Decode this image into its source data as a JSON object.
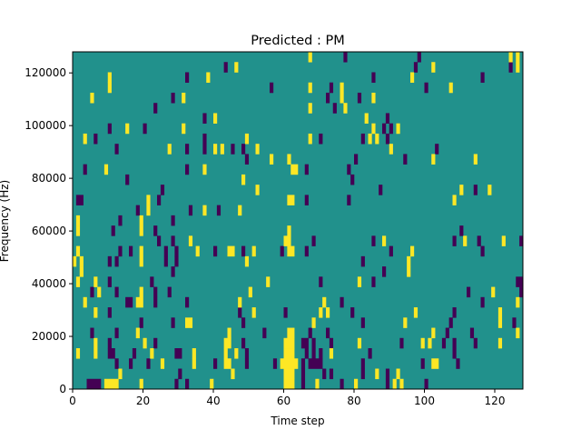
{
  "chart_data": {
    "type": "heatmap",
    "title": "Predicted : PM",
    "xlabel": "Time step",
    "ylabel": "Frequency (Hz)",
    "xlim": [
      0,
      128
    ],
    "ylim": [
      0,
      128000
    ],
    "n_time_steps": 128,
    "n_freq_bins": 33,
    "x_ticks": [
      0,
      20,
      40,
      60,
      80,
      100,
      120
    ],
    "x_tick_labels": [
      "0",
      "20",
      "40",
      "60",
      "80",
      "100",
      "120"
    ],
    "y_ticks": [
      0,
      20000,
      40000,
      60000,
      80000,
      100000,
      120000
    ],
    "y_tick_labels": [
      "0",
      "20000",
      "40000",
      "60000",
      "80000",
      "100000",
      "120000"
    ],
    "colors": {
      "background": "#21918c",
      "low": "#440154",
      "high": "#fde725"
    },
    "cell_format": "[time_step, freq_bin, n_steps]",
    "purple_cells": [
      [
        4,
        0,
        4
      ],
      [
        29,
        0,
        1
      ],
      [
        32,
        0,
        1
      ],
      [
        65,
        0,
        1
      ],
      [
        76,
        0,
        1
      ],
      [
        89,
        0,
        1
      ],
      [
        100,
        0,
        1
      ],
      [
        30,
        1,
        1
      ],
      [
        65,
        1,
        1
      ],
      [
        71,
        1,
        1
      ],
      [
        73,
        1,
        1
      ],
      [
        82,
        1,
        1
      ],
      [
        89,
        1,
        1
      ],
      [
        12,
        2,
        1
      ],
      [
        16,
        2,
        1
      ],
      [
        21,
        2,
        1
      ],
      [
        40,
        2,
        1
      ],
      [
        49,
        2,
        1
      ],
      [
        57,
        2,
        1
      ],
      [
        65,
        2,
        1
      ],
      [
        67,
        2,
        4
      ],
      [
        82,
        2,
        1
      ],
      [
        99,
        2,
        1
      ],
      [
        109,
        2,
        1
      ],
      [
        10,
        3,
        2
      ],
      [
        17,
        3,
        1
      ],
      [
        29,
        3,
        2
      ],
      [
        49,
        3,
        1
      ],
      [
        66,
        3,
        1
      ],
      [
        68,
        3,
        1
      ],
      [
        70,
        3,
        1
      ],
      [
        84,
        3,
        1
      ],
      [
        108,
        3,
        1
      ],
      [
        10,
        4,
        1
      ],
      [
        23,
        4,
        1
      ],
      [
        48,
        4,
        1
      ],
      [
        65,
        4,
        2
      ],
      [
        68,
        4,
        1
      ],
      [
        73,
        4,
        1
      ],
      [
        93,
        4,
        1
      ],
      [
        105,
        4,
        1
      ],
      [
        108,
        4,
        1
      ],
      [
        114,
        4,
        1
      ],
      [
        5,
        5,
        1
      ],
      [
        12,
        5,
        1
      ],
      [
        54,
        5,
        1
      ],
      [
        67,
        5,
        1
      ],
      [
        72,
        5,
        1
      ],
      [
        106,
        5,
        1
      ],
      [
        113,
        5,
        1
      ],
      [
        19,
        6,
        1
      ],
      [
        28,
        6,
        1
      ],
      [
        48,
        6,
        1
      ],
      [
        82,
        6,
        1
      ],
      [
        107,
        6,
        1
      ],
      [
        125,
        6,
        1
      ],
      [
        10,
        7,
        1
      ],
      [
        47,
        7,
        1
      ],
      [
        60,
        7,
        1
      ],
      [
        79,
        7,
        1
      ],
      [
        108,
        7,
        1
      ],
      [
        15,
        8,
        2
      ],
      [
        23,
        8,
        1
      ],
      [
        32,
        8,
        1
      ],
      [
        76,
        8,
        1
      ],
      [
        116,
        8,
        1
      ],
      [
        5,
        9,
        1
      ],
      [
        12,
        9,
        1
      ],
      [
        23,
        9,
        1
      ],
      [
        27,
        9,
        1
      ],
      [
        112,
        9,
        1
      ],
      [
        127,
        9,
        1
      ],
      [
        10,
        10,
        1
      ],
      [
        22,
        10,
        1
      ],
      [
        70,
        10,
        1
      ],
      [
        85,
        10,
        1
      ],
      [
        126,
        10,
        2
      ],
      [
        28,
        11,
        1
      ],
      [
        88,
        11,
        1
      ],
      [
        10,
        12,
        1
      ],
      [
        12,
        12,
        1
      ],
      [
        26,
        12,
        1
      ],
      [
        29,
        12,
        1
      ],
      [
        82,
        12,
        1
      ],
      [
        13,
        13,
        1
      ],
      [
        16,
        13,
        1
      ],
      [
        26,
        13,
        1
      ],
      [
        29,
        13,
        1
      ],
      [
        40,
        13,
        1
      ],
      [
        48,
        13,
        1
      ],
      [
        59,
        13,
        1
      ],
      [
        66,
        13,
        1
      ],
      [
        90,
        13,
        1
      ],
      [
        116,
        13,
        1
      ],
      [
        24,
        14,
        1
      ],
      [
        28,
        14,
        1
      ],
      [
        68,
        14,
        1
      ],
      [
        85,
        14,
        1
      ],
      [
        108,
        14,
        1
      ],
      [
        115,
        14,
        1
      ],
      [
        127,
        14,
        1
      ],
      [
        11,
        15,
        1
      ],
      [
        23,
        15,
        1
      ],
      [
        110,
        15,
        1
      ],
      [
        13,
        16,
        1
      ],
      [
        28,
        16,
        1
      ],
      [
        18,
        17,
        1
      ],
      [
        33,
        17,
        1
      ],
      [
        41,
        17,
        1
      ],
      [
        1,
        18,
        2
      ],
      [
        24,
        18,
        1
      ],
      [
        66,
        18,
        1
      ],
      [
        78,
        18,
        1
      ],
      [
        25,
        19,
        1
      ],
      [
        87,
        19,
        1
      ],
      [
        114,
        19,
        1
      ],
      [
        15,
        20,
        1
      ],
      [
        79,
        20,
        1
      ],
      [
        3,
        21,
        1
      ],
      [
        32,
        21,
        1
      ],
      [
        66,
        21,
        1
      ],
      [
        78,
        21,
        1
      ],
      [
        49,
        22,
        1
      ],
      [
        80,
        22,
        1
      ],
      [
        94,
        22,
        1
      ],
      [
        12,
        23,
        1
      ],
      [
        32,
        23,
        1
      ],
      [
        37,
        23,
        1
      ],
      [
        45,
        23,
        1
      ],
      [
        48,
        23,
        1
      ],
      [
        103,
        23,
        1
      ],
      [
        6,
        24,
        1
      ],
      [
        37,
        24,
        1
      ],
      [
        70,
        24,
        1
      ],
      [
        82,
        24,
        1
      ],
      [
        89,
        24,
        1
      ],
      [
        10,
        25,
        1
      ],
      [
        20,
        25,
        1
      ],
      [
        88,
        25,
        1
      ],
      [
        90,
        25,
        1
      ],
      [
        37,
        26,
        1
      ],
      [
        89,
        26,
        1
      ],
      [
        23,
        27,
        1
      ],
      [
        74,
        27,
        1
      ],
      [
        28,
        28,
        1
      ],
      [
        72,
        28,
        1
      ],
      [
        81,
        28,
        1
      ],
      [
        56,
        29,
        1
      ],
      [
        73,
        29,
        1
      ],
      [
        100,
        29,
        1
      ],
      [
        32,
        30,
        1
      ],
      [
        85,
        30,
        1
      ],
      [
        116,
        30,
        1
      ],
      [
        43,
        31,
        1
      ],
      [
        97,
        31,
        1
      ],
      [
        124,
        31,
        1
      ],
      [
        77,
        32,
        1
      ],
      [
        98,
        32,
        1
      ]
    ],
    "yellow_cells": [
      [
        9,
        0,
        4
      ],
      [
        19,
        0,
        1
      ],
      [
        39,
        0,
        1
      ],
      [
        60,
        0,
        3
      ],
      [
        69,
        0,
        1
      ],
      [
        80,
        0,
        1
      ],
      [
        91,
        0,
        1
      ],
      [
        93,
        0,
        1
      ],
      [
        13,
        1,
        1
      ],
      [
        45,
        1,
        1
      ],
      [
        60,
        1,
        3
      ],
      [
        86,
        1,
        1
      ],
      [
        92,
        1,
        1
      ],
      [
        25,
        2,
        1
      ],
      [
        34,
        2,
        1
      ],
      [
        43,
        2,
        2
      ],
      [
        59,
        2,
        5
      ],
      [
        102,
        2,
        2
      ],
      [
        1,
        3,
        1
      ],
      [
        6,
        3,
        1
      ],
      [
        22,
        3,
        1
      ],
      [
        34,
        3,
        1
      ],
      [
        43,
        3,
        1
      ],
      [
        46,
        3,
        1
      ],
      [
        60,
        3,
        3
      ],
      [
        73,
        3,
        1
      ],
      [
        6,
        4,
        1
      ],
      [
        20,
        4,
        1
      ],
      [
        43,
        4,
        2
      ],
      [
        60,
        4,
        3
      ],
      [
        81,
        4,
        1
      ],
      [
        99,
        4,
        1
      ],
      [
        101,
        4,
        1
      ],
      [
        121,
        4,
        1
      ],
      [
        18,
        5,
        1
      ],
      [
        44,
        5,
        1
      ],
      [
        61,
        5,
        2
      ],
      [
        102,
        5,
        1
      ],
      [
        126,
        5,
        1
      ],
      [
        32,
        6,
        2
      ],
      [
        68,
        6,
        1
      ],
      [
        94,
        6,
        1
      ],
      [
        121,
        6,
        1
      ],
      [
        6,
        7,
        1
      ],
      [
        51,
        7,
        1
      ],
      [
        70,
        7,
        1
      ],
      [
        72,
        7,
        1
      ],
      [
        97,
        7,
        1
      ],
      [
        121,
        7,
        1
      ],
      [
        3,
        8,
        1
      ],
      [
        18,
        8,
        2
      ],
      [
        47,
        8,
        1
      ],
      [
        71,
        8,
        1
      ],
      [
        126,
        8,
        1
      ],
      [
        7,
        9,
        1
      ],
      [
        19,
        9,
        1
      ],
      [
        50,
        9,
        1
      ],
      [
        119,
        9,
        1
      ],
      [
        1,
        10,
        1
      ],
      [
        6,
        10,
        1
      ],
      [
        55,
        10,
        1
      ],
      [
        81,
        10,
        1
      ],
      [
        2,
        11,
        1
      ],
      [
        95,
        11,
        1
      ],
      [
        0,
        12,
        1
      ],
      [
        2,
        12,
        1
      ],
      [
        19,
        12,
        1
      ],
      [
        49,
        12,
        1
      ],
      [
        95,
        12,
        1
      ],
      [
        1,
        13,
        1
      ],
      [
        19,
        13,
        1
      ],
      [
        35,
        13,
        1
      ],
      [
        44,
        13,
        2
      ],
      [
        51,
        13,
        1
      ],
      [
        61,
        13,
        2
      ],
      [
        96,
        13,
        1
      ],
      [
        33,
        14,
        1
      ],
      [
        60,
        14,
        2
      ],
      [
        88,
        14,
        1
      ],
      [
        111,
        14,
        1
      ],
      [
        122,
        14,
        1
      ],
      [
        1,
        15,
        1
      ],
      [
        19,
        15,
        1
      ],
      [
        61,
        15,
        1
      ],
      [
        1,
        16,
        1
      ],
      [
        19,
        16,
        1
      ],
      [
        21,
        17,
        1
      ],
      [
        37,
        17,
        1
      ],
      [
        47,
        17,
        1
      ],
      [
        21,
        18,
        1
      ],
      [
        61,
        18,
        2
      ],
      [
        108,
        18,
        1
      ],
      [
        52,
        19,
        1
      ],
      [
        110,
        19,
        1
      ],
      [
        118,
        19,
        1
      ],
      [
        48,
        20,
        1
      ],
      [
        9,
        21,
        1
      ],
      [
        37,
        21,
        1
      ],
      [
        62,
        21,
        2
      ],
      [
        56,
        22,
        1
      ],
      [
        61,
        22,
        1
      ],
      [
        102,
        22,
        1
      ],
      [
        114,
        22,
        1
      ],
      [
        27,
        23,
        1
      ],
      [
        40,
        23,
        1
      ],
      [
        42,
        23,
        1
      ],
      [
        52,
        23,
        1
      ],
      [
        90,
        23,
        1
      ],
      [
        3,
        24,
        1
      ],
      [
        49,
        24,
        1
      ],
      [
        67,
        24,
        1
      ],
      [
        84,
        24,
        1
      ],
      [
        86,
        24,
        1
      ],
      [
        15,
        25,
        1
      ],
      [
        31,
        25,
        1
      ],
      [
        85,
        25,
        1
      ],
      [
        92,
        25,
        1
      ],
      [
        40,
        26,
        1
      ],
      [
        83,
        26,
        1
      ],
      [
        67,
        27,
        1
      ],
      [
        77,
        27,
        1
      ],
      [
        5,
        28,
        1
      ],
      [
        31,
        28,
        1
      ],
      [
        76,
        28,
        1
      ],
      [
        85,
        28,
        1
      ],
      [
        10,
        29,
        1
      ],
      [
        67,
        29,
        1
      ],
      [
        76,
        29,
        1
      ],
      [
        107,
        29,
        1
      ],
      [
        10,
        30,
        1
      ],
      [
        38,
        30,
        1
      ],
      [
        96,
        30,
        1
      ],
      [
        46,
        31,
        1
      ],
      [
        102,
        31,
        1
      ],
      [
        126,
        31,
        1
      ],
      [
        67,
        32,
        1
      ],
      [
        124,
        32,
        1
      ],
      [
        126,
        32,
        1
      ]
    ]
  }
}
